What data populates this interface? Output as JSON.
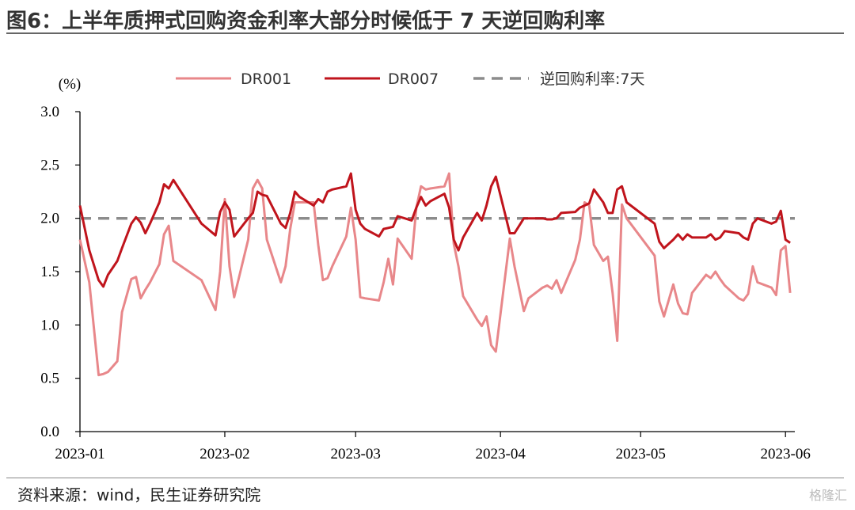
{
  "page": {
    "title": "图6：上半年质押式回购资金利率大部分时候低于 7 天逆回购利率",
    "source": "资料来源：wind，民生证券研究院",
    "watermark": "格隆汇"
  },
  "chart_data": {
    "type": "line",
    "title": "图6：上半年质押式回购资金利率大部分时候低于 7 天逆回购利率",
    "ylabel": "(%)",
    "xlabel": "",
    "ylim": [
      0.0,
      3.0
    ],
    "yticks": [
      "0.0",
      "0.5",
      "1.0",
      "1.5",
      "2.0",
      "2.5",
      "3.0"
    ],
    "xlim": [
      "2023-01-01",
      "2023-06-03"
    ],
    "xticks": [
      "2023-01",
      "2023-02",
      "2023-03",
      "2023-04",
      "2023-05",
      "2023-06"
    ],
    "legend_position": "top",
    "grid": false,
    "series": [
      {
        "name": "DR001",
        "color": "#e8878a",
        "style": "solid",
        "x": [
          "2023-01-01",
          "2023-01-03",
          "2023-01-05",
          "2023-01-06",
          "2023-01-07",
          "2023-01-09",
          "2023-01-10",
          "2023-01-12",
          "2023-01-13",
          "2023-01-14",
          "2023-01-15",
          "2023-01-16",
          "2023-01-18",
          "2023-01-19",
          "2023-01-20",
          "2023-01-21",
          "2023-01-27",
          "2023-01-30",
          "2023-01-31",
          "2023-02-01",
          "2023-02-02",
          "2023-02-03",
          "2023-02-06",
          "2023-02-07",
          "2023-02-08",
          "2023-02-09",
          "2023-02-10",
          "2023-02-13",
          "2023-02-14",
          "2023-02-15",
          "2023-02-16",
          "2023-02-17",
          "2023-02-20",
          "2023-02-21",
          "2023-02-22",
          "2023-02-23",
          "2023-02-24",
          "2023-02-27",
          "2023-02-28",
          "2023-03-01",
          "2023-03-02",
          "2023-03-03",
          "2023-03-06",
          "2023-03-07",
          "2023-03-08",
          "2023-03-09",
          "2023-03-10",
          "2023-03-13",
          "2023-03-14",
          "2023-03-15",
          "2023-03-16",
          "2023-03-17",
          "2023-03-20",
          "2023-03-21",
          "2023-03-22",
          "2023-03-23",
          "2023-03-24",
          "2023-03-27",
          "2023-03-28",
          "2023-03-29",
          "2023-03-30",
          "2023-03-31",
          "2023-04-03",
          "2023-04-04",
          "2023-04-06",
          "2023-04-07",
          "2023-04-10",
          "2023-04-11",
          "2023-04-12",
          "2023-04-13",
          "2023-04-14",
          "2023-04-17",
          "2023-04-18",
          "2023-04-19",
          "2023-04-20",
          "2023-04-21",
          "2023-04-23",
          "2023-04-24",
          "2023-04-25",
          "2023-04-26",
          "2023-04-27",
          "2023-04-28",
          "2023-05-04",
          "2023-05-05",
          "2023-05-06",
          "2023-05-08",
          "2023-05-09",
          "2023-05-10",
          "2023-05-11",
          "2023-05-12",
          "2023-05-15",
          "2023-05-16",
          "2023-05-17",
          "2023-05-18",
          "2023-05-19",
          "2023-05-22",
          "2023-05-23",
          "2023-05-24",
          "2023-05-25",
          "2023-05-26",
          "2023-05-29",
          "2023-05-30",
          "2023-05-31",
          "2023-06-01",
          "2023-06-02"
        ],
        "values": [
          1.8,
          1.4,
          0.53,
          0.54,
          0.56,
          0.66,
          1.12,
          1.43,
          1.45,
          1.25,
          1.33,
          1.4,
          1.57,
          1.85,
          1.93,
          1.6,
          1.42,
          1.14,
          1.5,
          2.18,
          1.55,
          1.26,
          1.8,
          2.28,
          2.36,
          2.28,
          1.8,
          1.4,
          1.55,
          1.9,
          2.15,
          2.15,
          2.15,
          1.75,
          1.42,
          1.44,
          1.55,
          1.83,
          2.1,
          1.8,
          1.26,
          1.25,
          1.23,
          1.4,
          1.62,
          1.38,
          1.81,
          1.62,
          2.1,
          2.3,
          2.27,
          2.28,
          2.3,
          2.42,
          1.76,
          1.55,
          1.27,
          1.05,
          0.99,
          1.08,
          0.81,
          0.75,
          1.81,
          1.55,
          1.13,
          1.25,
          1.35,
          1.37,
          1.34,
          1.42,
          1.3,
          1.61,
          1.8,
          2.15,
          2.12,
          1.75,
          1.6,
          1.64,
          1.3,
          0.85,
          2.13,
          2.0,
          1.65,
          1.22,
          1.08,
          1.38,
          1.2,
          1.11,
          1.1,
          1.3,
          1.47,
          1.44,
          1.5,
          1.43,
          1.37,
          1.25,
          1.23,
          1.29,
          1.55,
          1.4,
          1.35,
          1.28,
          1.7,
          1.74,
          1.3
        ]
      },
      {
        "name": "DR007",
        "color": "#c0141c",
        "style": "solid",
        "x": [
          "2023-01-01",
          "2023-01-03",
          "2023-01-05",
          "2023-01-06",
          "2023-01-07",
          "2023-01-09",
          "2023-01-10",
          "2023-01-12",
          "2023-01-13",
          "2023-01-14",
          "2023-01-15",
          "2023-01-16",
          "2023-01-18",
          "2023-01-19",
          "2023-01-20",
          "2023-01-21",
          "2023-01-27",
          "2023-01-30",
          "2023-01-31",
          "2023-02-01",
          "2023-02-02",
          "2023-02-03",
          "2023-02-06",
          "2023-02-07",
          "2023-02-08",
          "2023-02-09",
          "2023-02-10",
          "2023-02-13",
          "2023-02-14",
          "2023-02-15",
          "2023-02-16",
          "2023-02-17",
          "2023-02-20",
          "2023-02-21",
          "2023-02-22",
          "2023-02-23",
          "2023-02-24",
          "2023-02-27",
          "2023-02-28",
          "2023-03-01",
          "2023-03-02",
          "2023-03-03",
          "2023-03-06",
          "2023-03-07",
          "2023-03-08",
          "2023-03-09",
          "2023-03-10",
          "2023-03-13",
          "2023-03-14",
          "2023-03-15",
          "2023-03-16",
          "2023-03-17",
          "2023-03-20",
          "2023-03-21",
          "2023-03-22",
          "2023-03-23",
          "2023-03-24",
          "2023-03-27",
          "2023-03-28",
          "2023-03-29",
          "2023-03-30",
          "2023-03-31",
          "2023-04-03",
          "2023-04-04",
          "2023-04-06",
          "2023-04-07",
          "2023-04-10",
          "2023-04-11",
          "2023-04-12",
          "2023-04-13",
          "2023-04-14",
          "2023-04-17",
          "2023-04-18",
          "2023-04-19",
          "2023-04-20",
          "2023-04-21",
          "2023-04-23",
          "2023-04-24",
          "2023-04-25",
          "2023-04-26",
          "2023-04-27",
          "2023-04-28",
          "2023-05-04",
          "2023-05-05",
          "2023-05-06",
          "2023-05-08",
          "2023-05-09",
          "2023-05-10",
          "2023-05-11",
          "2023-05-12",
          "2023-05-15",
          "2023-05-16",
          "2023-05-17",
          "2023-05-18",
          "2023-05-19",
          "2023-05-22",
          "2023-05-23",
          "2023-05-24",
          "2023-05-25",
          "2023-05-26",
          "2023-05-29",
          "2023-05-30",
          "2023-05-31",
          "2023-06-01",
          "2023-06-02"
        ],
        "values": [
          2.12,
          1.7,
          1.42,
          1.36,
          1.47,
          1.6,
          1.72,
          1.95,
          2.01,
          1.96,
          1.86,
          1.95,
          2.15,
          2.32,
          2.28,
          2.36,
          1.95,
          1.84,
          2.06,
          2.15,
          2.08,
          1.83,
          2.0,
          2.05,
          2.25,
          2.22,
          2.21,
          1.95,
          1.91,
          2.05,
          2.25,
          2.2,
          2.12,
          2.18,
          2.15,
          2.25,
          2.27,
          2.3,
          2.42,
          2.08,
          1.95,
          1.9,
          1.83,
          1.9,
          1.91,
          1.92,
          2.02,
          1.98,
          2.1,
          2.2,
          2.12,
          2.16,
          2.23,
          2.1,
          1.8,
          1.7,
          1.82,
          2.05,
          1.98,
          2.12,
          2.3,
          2.39,
          1.86,
          1.86,
          2.0,
          2.0,
          2.0,
          1.99,
          1.99,
          2.0,
          2.05,
          2.06,
          2.1,
          2.12,
          2.14,
          2.27,
          2.15,
          2.05,
          2.05,
          2.27,
          2.3,
          2.15,
          1.95,
          1.78,
          1.72,
          1.8,
          1.85,
          1.8,
          1.85,
          1.82,
          1.82,
          1.85,
          1.8,
          1.82,
          1.88,
          1.86,
          1.82,
          1.8,
          1.95,
          2.0,
          1.95,
          1.97,
          2.07,
          1.8,
          1.77
        ]
      },
      {
        "name": "逆回购利率:7天",
        "color": "#8c8c8c",
        "style": "dashed",
        "x": [
          "2023-01-01",
          "2023-06-03"
        ],
        "values": [
          2.0,
          2.0
        ]
      }
    ]
  }
}
